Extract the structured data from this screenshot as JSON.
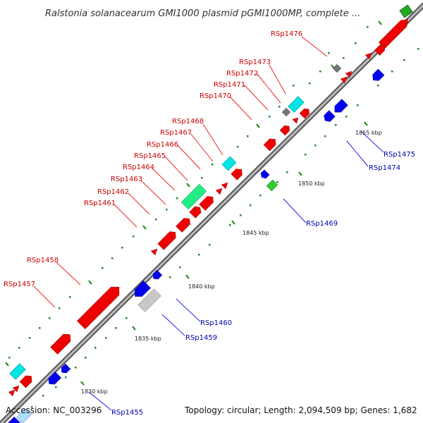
{
  "title": "Ralstonia solanacearum GMI1000 plasmid pGMI1000MP, complete ...",
  "footer": {
    "accession": "Accession: NC_003296",
    "summary": "Topology: circular; Length: 2,094,509 bp; Genes: 1,682"
  },
  "colors": {
    "backbone": "#888888",
    "cds": "#ee0000",
    "blue_gene": "#0000cc",
    "cyan_feature": "#00e5e5",
    "green_feature": "#22bb22",
    "gray_feature": "#777777",
    "light_gray_feature": "#bbbbbb",
    "minor_tick": "#228822",
    "red_label": "#cc0000",
    "blue_label": "#0000aa"
  },
  "scale_labels": [
    {
      "id": "1830",
      "text": "1830 kbp"
    },
    {
      "id": "1835",
      "text": "1835 kbp"
    },
    {
      "id": "1840",
      "text": "1840 kbp"
    },
    {
      "id": "1845",
      "text": "1845 kbp"
    },
    {
      "id": "1850",
      "text": "1850 kbp"
    },
    {
      "id": "1855",
      "text": "1855 kbp"
    }
  ],
  "gene_labels": [
    {
      "id": "RSp1476",
      "text": "RSp1476",
      "strand": "forward"
    },
    {
      "id": "RSp1473",
      "text": "RSp1473",
      "strand": "forward"
    },
    {
      "id": "RSp1472",
      "text": "RSp1472",
      "strand": "forward"
    },
    {
      "id": "RSp1471",
      "text": "RSp1471",
      "strand": "forward"
    },
    {
      "id": "RSp1470",
      "text": "RSp1470",
      "strand": "forward"
    },
    {
      "id": "RSp1468",
      "text": "RSp1468",
      "strand": "forward"
    },
    {
      "id": "RSp1467",
      "text": "RSp1467",
      "strand": "forward"
    },
    {
      "id": "RSp1466",
      "text": "RSp1466",
      "strand": "forward"
    },
    {
      "id": "RSp1465",
      "text": "RSp1465",
      "strand": "forward"
    },
    {
      "id": "RSp1464",
      "text": "RSp1464",
      "strand": "forward"
    },
    {
      "id": "RSp1463",
      "text": "RSp1463",
      "strand": "forward"
    },
    {
      "id": "RSp1462",
      "text": "RSp1462",
      "strand": "forward"
    },
    {
      "id": "RSp1461",
      "text": "RSp1461",
      "strand": "forward"
    },
    {
      "id": "RSp1458",
      "text": "RSp1458",
      "strand": "forward"
    },
    {
      "id": "RSp1457",
      "text": "RSp1457",
      "strand": "forward"
    },
    {
      "id": "RSp1475",
      "text": "RSp1475",
      "strand": "reverse"
    },
    {
      "id": "RSp1474",
      "text": "RSp1474",
      "strand": "reverse"
    },
    {
      "id": "RSp1469",
      "text": "RSp1469",
      "strand": "reverse"
    },
    {
      "id": "RSp1460",
      "text": "RSp1460",
      "strand": "reverse"
    },
    {
      "id": "RSp1459",
      "text": "RSp1459",
      "strand": "reverse"
    },
    {
      "id": "RSp1455",
      "text": "RSp1455",
      "strand": "reverse"
    }
  ]
}
